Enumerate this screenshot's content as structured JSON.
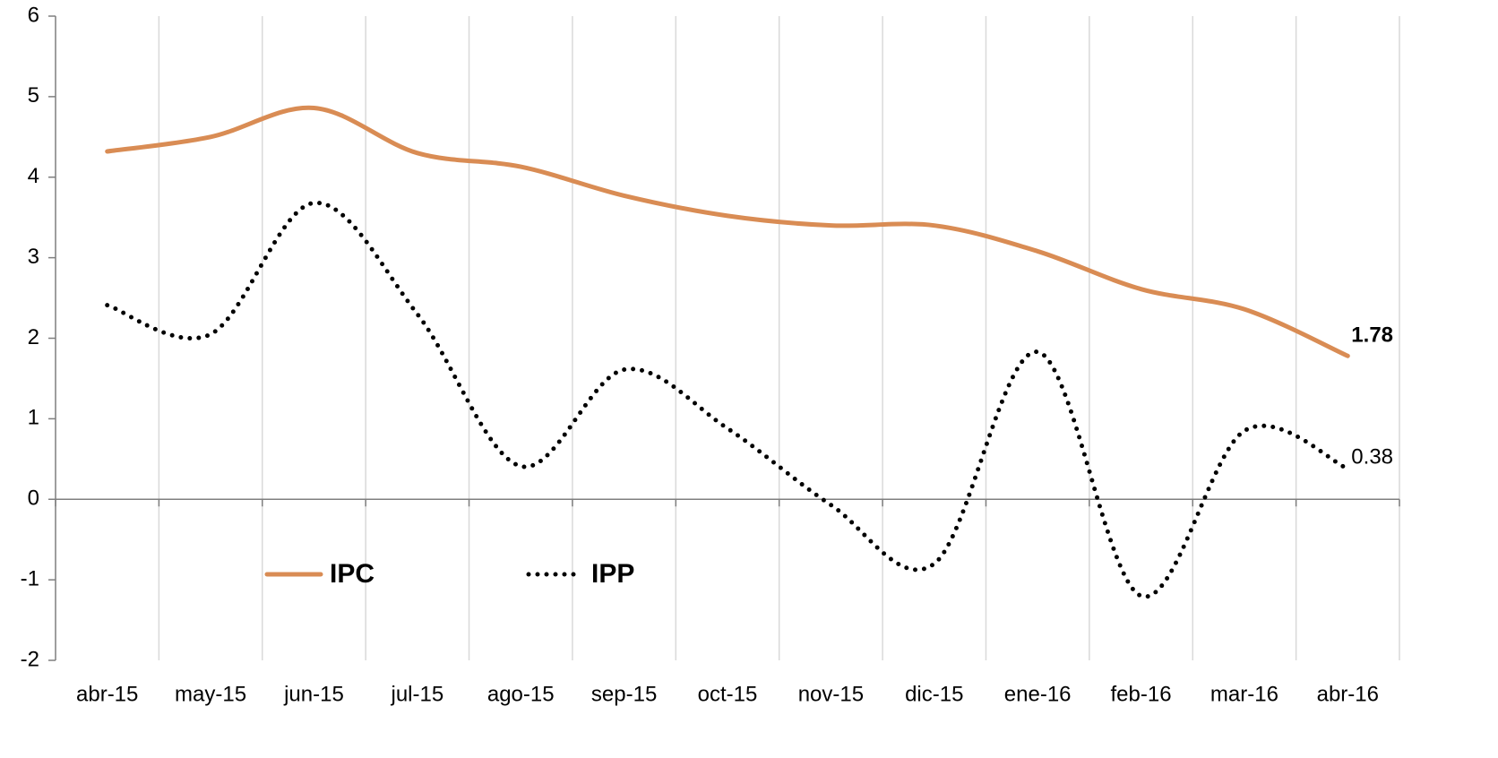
{
  "chart_data": {
    "type": "line",
    "categories": [
      "abr-15",
      "may-15",
      "jun-15",
      "jul-15",
      "ago-15",
      "sep-15",
      "oct-15",
      "nov-15",
      "dic-15",
      "ene-16",
      "feb-16",
      "mar-16",
      "abr-16"
    ],
    "series": [
      {
        "name": "IPC",
        "color": "#d98c54",
        "style": "solid",
        "values": [
          4.32,
          4.5,
          4.86,
          4.3,
          4.13,
          3.77,
          3.52,
          3.4,
          3.4,
          3.08,
          2.61,
          2.36,
          1.78
        ],
        "value_labels": [
          null,
          null,
          null,
          null,
          null,
          null,
          null,
          null,
          null,
          null,
          null,
          null,
          "1.78"
        ]
      },
      {
        "name": "IPP",
        "color": "#000000",
        "style": "dotted",
        "values": [
          2.41,
          2.05,
          3.68,
          2.3,
          0.41,
          1.61,
          0.88,
          -0.07,
          -0.8,
          1.83,
          -1.2,
          0.85,
          0.38
        ],
        "value_labels": [
          null,
          null,
          null,
          null,
          null,
          null,
          null,
          null,
          null,
          null,
          null,
          null,
          "0.38"
        ]
      }
    ],
    "ylim": [
      -2,
      6
    ],
    "yticks": [
      -2,
      -1,
      0,
      1,
      2,
      3,
      4,
      5,
      6
    ],
    "grid": true,
    "legend": "bottom-left"
  }
}
